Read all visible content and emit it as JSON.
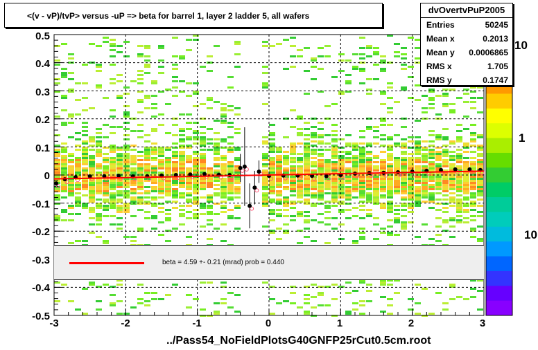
{
  "chart_data": {
    "type": "heatmap",
    "title": "<(v - vP)/tvP> versus  -uP => beta for barrel 1, layer 2 ladder 5, all wafers",
    "xlim": [
      -3,
      3
    ],
    "ylim": [
      -0.5,
      0.5
    ],
    "x_ticks": [
      "-3",
      "-2",
      "-1",
      "0",
      "1",
      "2",
      "3"
    ],
    "y_ticks": [
      "0.5",
      "0.4",
      "0.3",
      "0.2",
      "0.1",
      "0",
      "-0.1",
      "-0.2",
      "-0.3",
      "-0.4",
      "-0.5"
    ],
    "z_scale": "log",
    "z_ticks": [
      "10",
      "1",
      "10"
    ],
    "grid": true,
    "stats": {
      "name": "dvOvertvPuP2005",
      "rows": [
        {
          "label": "Entries",
          "value": "50245"
        },
        {
          "label": "Mean x",
          "value": "0.2013"
        },
        {
          "label": "Mean y",
          "value": "0.0006865"
        },
        {
          "label": "RMS x",
          "value": "1.705"
        },
        {
          "label": "RMS y",
          "value": "0.1747"
        }
      ]
    },
    "fit": {
      "text": "beta =    4.59 +-  0.21 (mrad) prob = 0.440",
      "color": "#ff0000"
    },
    "profile_points": [
      {
        "x": -2.97,
        "y": -0.03
      },
      {
        "x": -2.85,
        "y": -0.015
      },
      {
        "x": -2.7,
        "y": -0.008
      },
      {
        "x": -2.5,
        "y": -0.005
      },
      {
        "x": -2.3,
        "y": -0.004
      },
      {
        "x": -2.1,
        "y": -0.003
      },
      {
        "x": -1.9,
        "y": -0.005
      },
      {
        "x": -1.7,
        "y": -0.004
      },
      {
        "x": -1.5,
        "y": -0.002
      },
      {
        "x": -1.3,
        "y": 0.0
      },
      {
        "x": -1.1,
        "y": 0.002
      },
      {
        "x": -0.9,
        "y": 0.003
      },
      {
        "x": -0.7,
        "y": 0.001
      },
      {
        "x": -0.55,
        "y": 0.0
      },
      {
        "x": -0.4,
        "y": 0.025
      },
      {
        "x": -0.34,
        "y": 0.03
      },
      {
        "x": -0.27,
        "y": -0.11
      },
      {
        "x": -0.2,
        "y": -0.045
      },
      {
        "x": -0.14,
        "y": 0.012
      },
      {
        "x": 0.0,
        "y": -0.003
      },
      {
        "x": 0.2,
        "y": -0.002
      },
      {
        "x": 0.4,
        "y": -0.002
      },
      {
        "x": 0.6,
        "y": -0.003
      },
      {
        "x": 0.8,
        "y": -0.004
      },
      {
        "x": 1.0,
        "y": 0.0
      },
      {
        "x": 1.2,
        "y": 0.005
      },
      {
        "x": 1.4,
        "y": 0.007
      },
      {
        "x": 1.6,
        "y": 0.008
      },
      {
        "x": 1.8,
        "y": 0.01
      },
      {
        "x": 2.0,
        "y": 0.012
      },
      {
        "x": 2.2,
        "y": 0.015
      },
      {
        "x": 2.4,
        "y": 0.018
      },
      {
        "x": 2.6,
        "y": 0.02
      },
      {
        "x": 2.8,
        "y": 0.02
      },
      {
        "x": 2.95,
        "y": 0.018
      }
    ],
    "error_bars": [
      {
        "x": -0.4,
        "y": 0.025,
        "err": 0.05
      },
      {
        "x": -0.34,
        "y": 0.03,
        "err": 0.14
      },
      {
        "x": -0.27,
        "y": -0.11,
        "err": 0.08
      },
      {
        "x": -0.2,
        "y": -0.045,
        "err": 0.06
      },
      {
        "x": -0.14,
        "y": 0.012,
        "err": 0.04
      }
    ],
    "fit_line": [
      {
        "x": -3,
        "y": -0.014
      },
      {
        "x": 3,
        "y": 0.014
      }
    ]
  },
  "footer": "../Pass54_NoFieldPlotsG40GNFP25rCut0.5cm.root"
}
